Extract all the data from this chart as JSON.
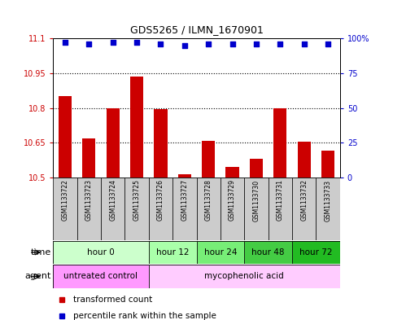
{
  "title": "GDS5265 / ILMN_1670901",
  "samples": [
    "GSM1133722",
    "GSM1133723",
    "GSM1133724",
    "GSM1133725",
    "GSM1133726",
    "GSM1133727",
    "GSM1133728",
    "GSM1133729",
    "GSM1133730",
    "GSM1133731",
    "GSM1133732",
    "GSM1133733"
  ],
  "bar_values": [
    10.85,
    10.67,
    10.8,
    10.935,
    10.795,
    10.515,
    10.66,
    10.545,
    10.58,
    10.8,
    10.655,
    10.615
  ],
  "percentile_values": [
    97,
    96,
    97,
    97,
    96,
    95,
    96,
    96,
    96,
    96,
    96,
    96
  ],
  "bar_color": "#cc0000",
  "percentile_color": "#0000cc",
  "ylim_left": [
    10.5,
    11.1
  ],
  "ylim_right": [
    0,
    100
  ],
  "yticks_left": [
    10.5,
    10.65,
    10.8,
    10.95,
    11.1
  ],
  "yticks_right": [
    0,
    25,
    50,
    75,
    100
  ],
  "ytick_labels_left": [
    "10.5",
    "10.65",
    "10.8",
    "10.95",
    "11.1"
  ],
  "ytick_labels_right": [
    "0",
    "25",
    "50",
    "75",
    "100%"
  ],
  "hlines": [
    10.65,
    10.8,
    10.95
  ],
  "time_groups": [
    {
      "label": "hour 0",
      "start": 0,
      "end": 3,
      "color": "#ccffcc"
    },
    {
      "label": "hour 12",
      "start": 4,
      "end": 5,
      "color": "#aaffaa"
    },
    {
      "label": "hour 24",
      "start": 6,
      "end": 7,
      "color": "#77ee77"
    },
    {
      "label": "hour 48",
      "start": 8,
      "end": 9,
      "color": "#44cc44"
    },
    {
      "label": "hour 72",
      "start": 10,
      "end": 11,
      "color": "#22bb22"
    }
  ],
  "agent_groups": [
    {
      "label": "untreated control",
      "start": 0,
      "end": 3,
      "color": "#ff99ff"
    },
    {
      "label": "mycophenolic acid",
      "start": 4,
      "end": 11,
      "color": "#ffccff"
    }
  ],
  "legend_bar_label": "transformed count",
  "legend_dot_label": "percentile rank within the sample",
  "time_label": "time",
  "agent_label": "agent",
  "background_color": "#ffffff",
  "tick_color_left": "#cc0000",
  "tick_color_right": "#0000cc",
  "bar_width": 0.55,
  "sample_bg_color": "#cccccc",
  "n_samples": 12
}
